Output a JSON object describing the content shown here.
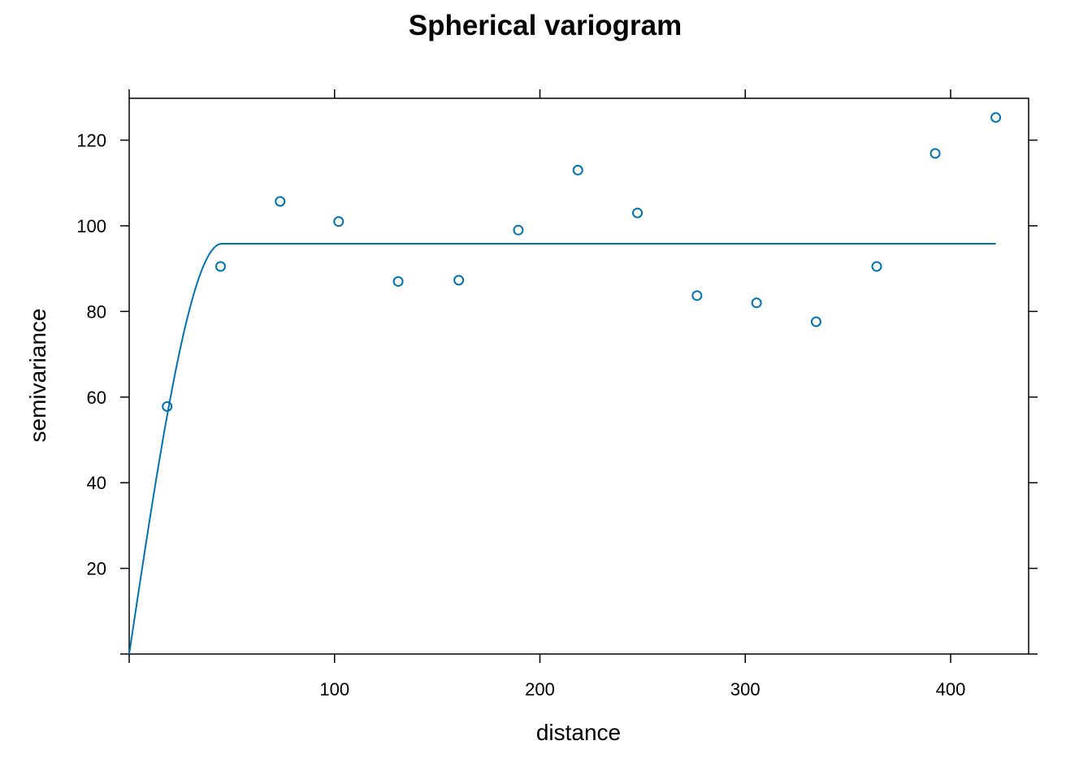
{
  "chart_data": {
    "type": "scatter",
    "title": "Spherical variogram",
    "xlabel": "distance",
    "ylabel": "semivariance",
    "xlim": [
      0,
      440
    ],
    "ylim": [
      0,
      130
    ],
    "x_ticks": [
      100,
      200,
      300,
      400
    ],
    "y_ticks": [
      20,
      40,
      60,
      80,
      100,
      120
    ],
    "grid": false,
    "legend": "none",
    "point_color": "#0072B2",
    "line_color": "#0072B2",
    "series": [
      {
        "type": "scatter",
        "x": [
          18.5,
          44.5,
          73.5,
          102,
          131,
          160.5,
          189.5,
          218.5,
          247.5,
          276.5,
          305.5,
          334.5,
          364,
          392.5,
          422
        ],
        "y": [
          57.8,
          90.5,
          105.7,
          101,
          87,
          87.3,
          99,
          113,
          103,
          83.7,
          82,
          77.6,
          90.5,
          116.9,
          125.3
        ]
      },
      {
        "type": "line",
        "model": "spherical",
        "nugget": 0,
        "psill": 95.8,
        "range": 45,
        "x_range": [
          0,
          422
        ]
      }
    ]
  }
}
